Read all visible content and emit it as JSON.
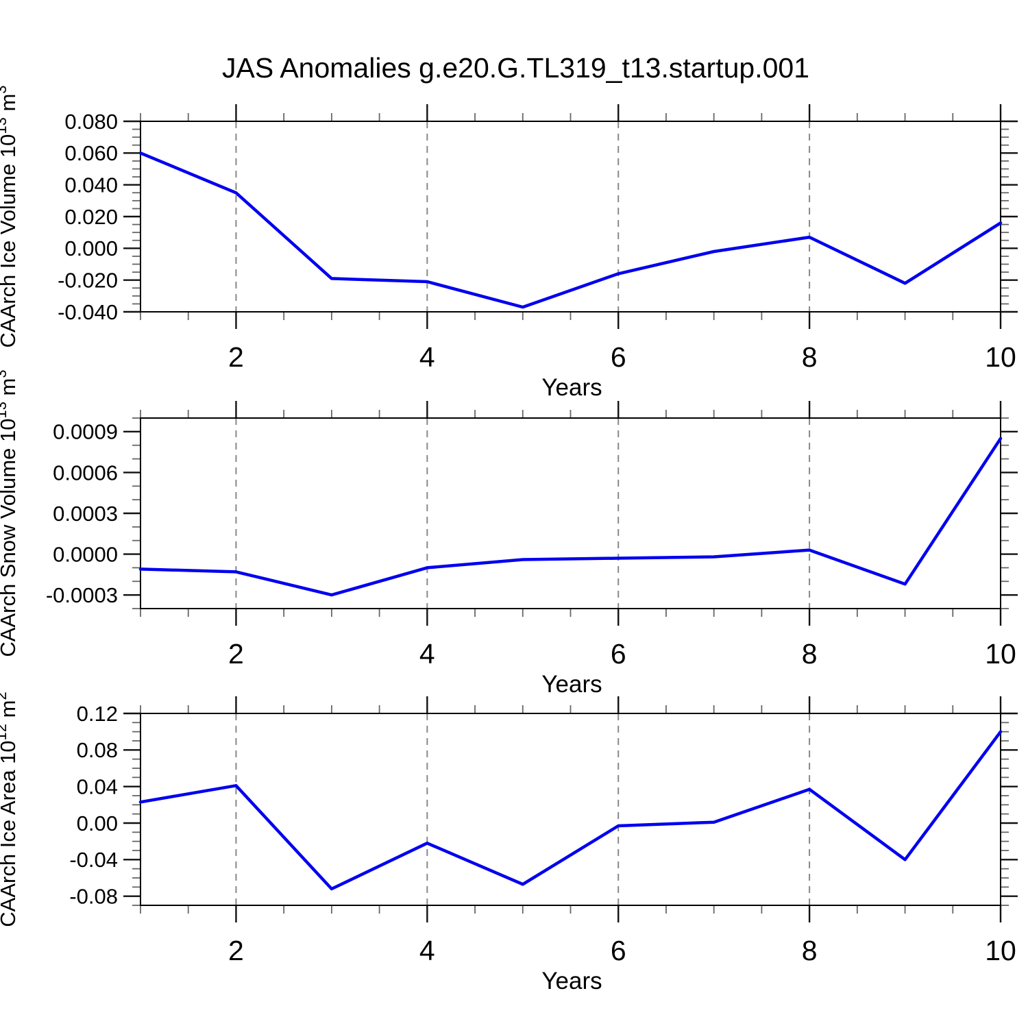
{
  "chart_data": {
    "type": "line",
    "title": "JAS Anomalies g.e20.G.TL319_t13.startup.001",
    "xlabel": "Years",
    "x": [
      1,
      2,
      3,
      4,
      5,
      6,
      7,
      8,
      9,
      10
    ],
    "xlim": [
      1,
      10
    ],
    "x_tick_labels": [
      {
        "v": 2,
        "label": "2"
      },
      {
        "v": 4,
        "label": "4"
      },
      {
        "v": 6,
        "label": "6"
      },
      {
        "v": 8,
        "label": "8"
      },
      {
        "v": 10,
        "label": "10"
      }
    ],
    "x_minor_step": 0.5,
    "grid_x": [
      2,
      4,
      6,
      8
    ],
    "grid_style": "dashed vertical gray lines at even years",
    "legend": "none",
    "line_color": "#0000EE",
    "panels": [
      {
        "name": "ice-volume",
        "ylabel": {
          "text": "CAArch Ice Volume",
          "power_base": "10",
          "power_exp": "13",
          "unit": "m",
          "unit_exp": "3"
        },
        "ylim": [
          -0.04,
          0.08
        ],
        "y_major_step": 0.02,
        "y_minor_step": 0.005,
        "y_ticks": [
          {
            "v": 0.08,
            "label": "0.080"
          },
          {
            "v": 0.06,
            "label": "0.060"
          },
          {
            "v": 0.04,
            "label": "0.040"
          },
          {
            "v": 0.02,
            "label": "0.020"
          },
          {
            "v": 0.0,
            "label": "0.000"
          },
          {
            "v": -0.02,
            "label": "-0.020"
          },
          {
            "v": -0.04,
            "label": "-0.040"
          }
        ],
        "values": [
          0.06,
          0.035,
          -0.019,
          -0.021,
          -0.037,
          -0.016,
          -0.002,
          0.007,
          -0.022,
          0.016
        ]
      },
      {
        "name": "snow-volume",
        "ylabel": {
          "text": "CAArch Snow Volume",
          "power_base": "10",
          "power_exp": "13",
          "unit": "m",
          "unit_exp": "3"
        },
        "ylim": [
          -0.0004,
          0.001
        ],
        "y_major_step": 0.0003,
        "y_minor_step": 0.0001,
        "y_ticks": [
          {
            "v": 0.0009,
            "label": "0.0009"
          },
          {
            "v": 0.0006,
            "label": "0.0006"
          },
          {
            "v": 0.0003,
            "label": "0.0003"
          },
          {
            "v": 0.0,
            "label": "0.0000"
          },
          {
            "v": -0.0003,
            "label": "-0.0003"
          }
        ],
        "values": [
          -0.00011,
          -0.00013,
          -0.0003,
          -0.0001,
          -4e-05,
          -3e-05,
          -2e-05,
          3e-05,
          -0.00022,
          0.00085
        ]
      },
      {
        "name": "ice-area",
        "ylabel": {
          "text": "CAArch Ice Area",
          "power_base": "10",
          "power_exp": "12",
          "unit": "m",
          "unit_exp": "2"
        },
        "ylim": [
          -0.09,
          0.12
        ],
        "y_major_step": 0.04,
        "y_minor_step": 0.01,
        "y_ticks": [
          {
            "v": 0.12,
            "label": "0.12"
          },
          {
            "v": 0.08,
            "label": "0.08"
          },
          {
            "v": 0.04,
            "label": "0.04"
          },
          {
            "v": 0.0,
            "label": "0.00"
          },
          {
            "v": -0.04,
            "label": "-0.04"
          },
          {
            "v": -0.08,
            "label": "-0.08"
          }
        ],
        "values": [
          0.023,
          0.041,
          -0.072,
          -0.022,
          -0.067,
          -0.003,
          0.001,
          0.037,
          -0.04,
          0.1
        ]
      }
    ]
  }
}
